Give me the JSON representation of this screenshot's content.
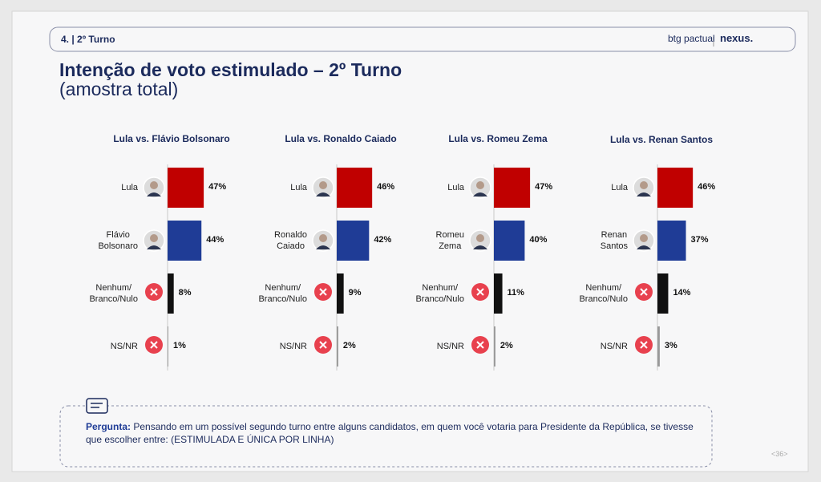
{
  "section": "4. | 2º Turno",
  "logos": [
    "btg pactual",
    "nexus."
  ],
  "title": "Intenção de voto estimulado – 2º Turno",
  "subtitle": "(amostra total)",
  "question_label": "Pergunta:",
  "question": "Pensando em um possível segundo turno entre alguns candidatos, em quem você votaria para Presidente da República, se tivesse que escolher entre: (ESTIMULADA E ÚNICA POR LINHA)",
  "page": "<36>",
  "chart_data": [
    {
      "type": "hbar",
      "title": "Lula vs. Flávio Bolsonaro",
      "categories": [
        "Lula",
        "Flávio\nBolsonaro",
        "Nenhum/\nBranco/Nulo",
        "NS/NR"
      ],
      "values": [
        47,
        44,
        8,
        1
      ],
      "value_labels": [
        "47%",
        "44%",
        "8%",
        "1%"
      ],
      "colors": [
        "#c00000",
        "#1f3c96",
        "#111111",
        "#9a9a9a"
      ]
    },
    {
      "type": "hbar",
      "title": "Lula vs. Ronaldo Caiado",
      "categories": [
        "Lula",
        "Ronaldo\nCaiado",
        "Nenhum/\nBranco/Nulo",
        "NS/NR"
      ],
      "values": [
        46,
        42,
        9,
        2
      ],
      "value_labels": [
        "46%",
        "42%",
        "9%",
        "2%"
      ],
      "colors": [
        "#c00000",
        "#1f3c96",
        "#111111",
        "#9a9a9a"
      ]
    },
    {
      "type": "hbar",
      "title": "Lula vs. Romeu Zema",
      "categories": [
        "Lula",
        "Romeu\nZema",
        "Nenhum/\nBranco/Nulo",
        "NS/NR"
      ],
      "values": [
        47,
        40,
        11,
        2
      ],
      "value_labels": [
        "47%",
        "40%",
        "11%",
        "2%"
      ],
      "colors": [
        "#c00000",
        "#1f3c96",
        "#111111",
        "#9a9a9a"
      ]
    },
    {
      "type": "hbar",
      "title": "Lula vs. Renan Santos",
      "categories": [
        "Lula",
        "Renan\nSantos",
        "Nenhum/\nBranco/Nulo",
        "NS/NR"
      ],
      "values": [
        46,
        37,
        14,
        3
      ],
      "value_labels": [
        "46%",
        "37%",
        "14%",
        "3%"
      ],
      "colors": [
        "#c00000",
        "#1f3c96",
        "#111111",
        "#9a9a9a"
      ]
    }
  ]
}
